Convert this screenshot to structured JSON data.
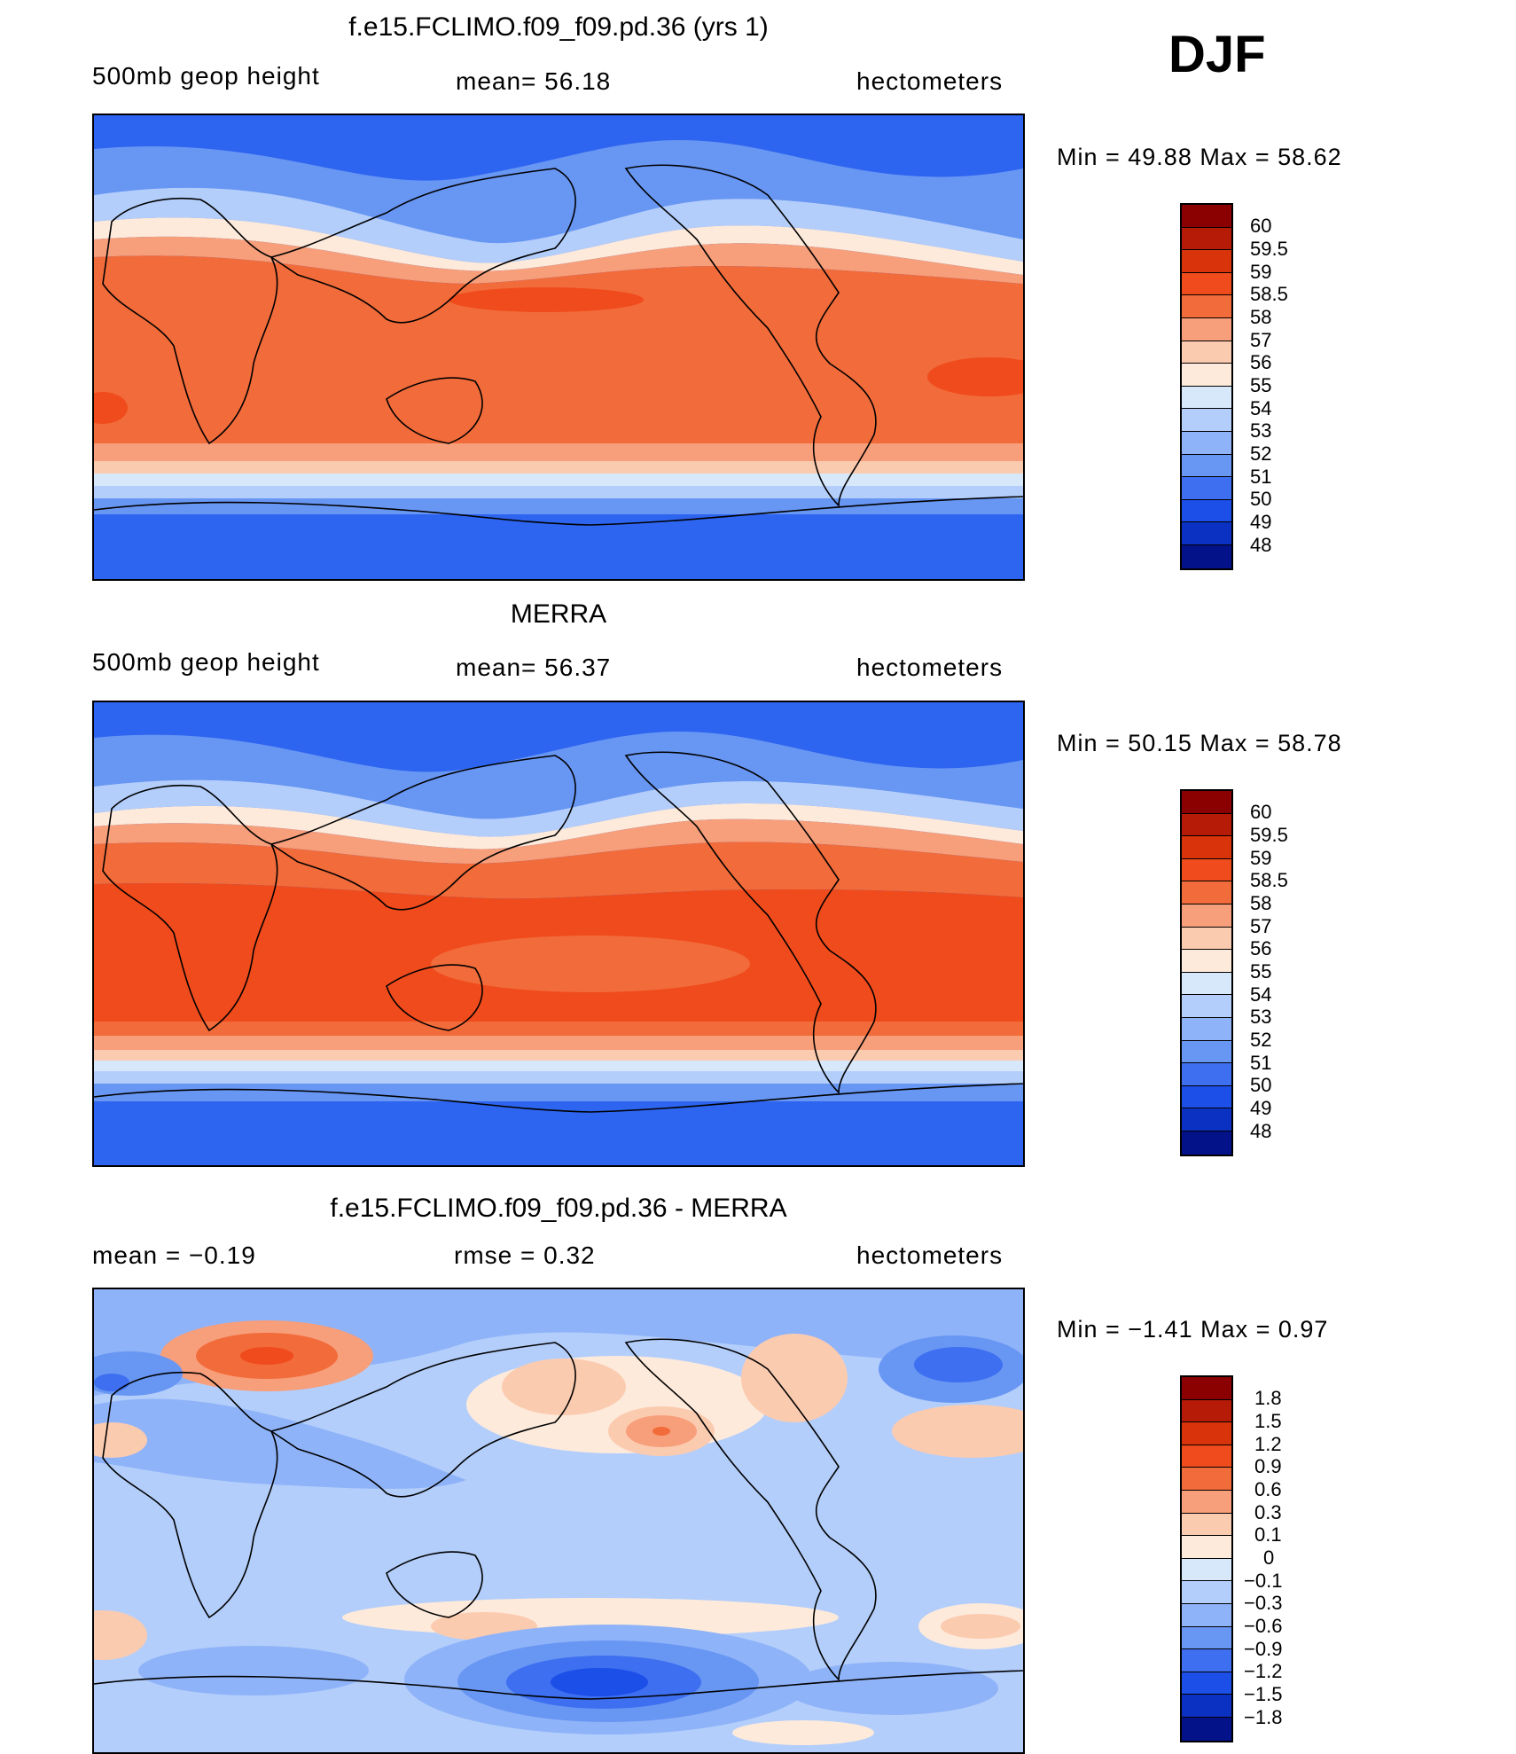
{
  "season": "DJF",
  "panels": [
    {
      "id": "model",
      "title": "f.e15.FCLIMO.f09_f09.pd.36 (yrs 1)",
      "left_label": "500mb  geop  height",
      "mid_label": "mean=   56.18",
      "right_label": "hectometers",
      "stats": "Min  =    49.88  Max  =    58.62",
      "colorbar_labels": [
        "60",
        "59.5",
        "59",
        "58.5",
        "58",
        "57",
        "56",
        "55",
        "54",
        "53",
        "52",
        "51",
        "50",
        "49",
        "48"
      ],
      "colors": [
        "#8b0000",
        "#b51b06",
        "#d9330b",
        "#f04b1c",
        "#f26b3a",
        "#f79e7a",
        "#fbcbb0",
        "#fdeadb",
        "#d8e8fb",
        "#b3cefb",
        "#8fb3f8",
        "#6896f3",
        "#3d6ff0",
        "#1c4ee8",
        "#0a31c1",
        "#04128a"
      ]
    },
    {
      "id": "obs",
      "title": "MERRA",
      "left_label": "500mb  geop  height",
      "mid_label": "mean=   56.37",
      "right_label": "hectometers",
      "stats": "Min  =    50.15  Max  =    58.78",
      "colorbar_labels": [
        "60",
        "59.5",
        "59",
        "58.5",
        "58",
        "57",
        "56",
        "55",
        "54",
        "53",
        "52",
        "51",
        "50",
        "49",
        "48"
      ],
      "colors": [
        "#8b0000",
        "#b51b06",
        "#d9330b",
        "#f04b1c",
        "#f26b3a",
        "#f79e7a",
        "#fbcbb0",
        "#fdeadb",
        "#d8e8fb",
        "#b3cefb",
        "#8fb3f8",
        "#6896f3",
        "#3d6ff0",
        "#1c4ee8",
        "#0a31c1",
        "#04128a"
      ]
    },
    {
      "id": "diff",
      "title": "f.e15.FCLIMO.f09_f09.pd.36 - MERRA",
      "left_label": "mean  =    −0.19",
      "mid_label": "rmse  =     0.32",
      "right_label": "hectometers",
      "stats": "Min  =    −1.41  Max  =      0.97",
      "colorbar_labels": [
        "1.8",
        "1.5",
        "1.2",
        "0.9",
        "0.6",
        "0.3",
        "0.1",
        "0",
        "−0.1",
        "−0.3",
        "−0.6",
        "−0.9",
        "−1.2",
        "−1.5",
        "−1.8"
      ],
      "colors": [
        "#8b0000",
        "#b51b06",
        "#d9330b",
        "#f04b1c",
        "#f26b3a",
        "#f79e7a",
        "#fbcbb0",
        "#fdeadb",
        "#d8e8fb",
        "#b3cefb",
        "#8fb3f8",
        "#6896f3",
        "#3d6ff0",
        "#1c4ee8",
        "#0a31c1",
        "#04128a"
      ]
    }
  ]
}
